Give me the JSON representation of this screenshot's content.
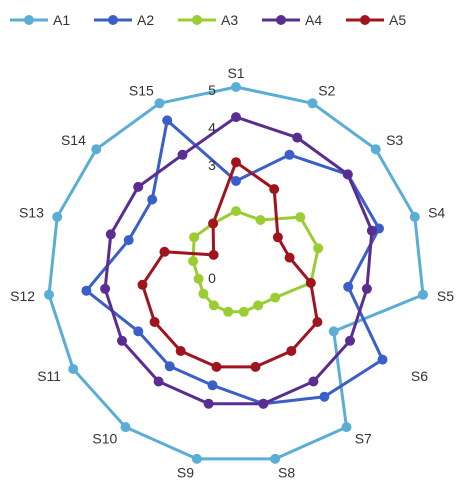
{
  "chart_data": {
    "type": "radar",
    "categories": [
      "S1",
      "S2",
      "S3",
      "S4",
      "S5",
      "S6",
      "S7",
      "S8",
      "S9",
      "S10",
      "S11",
      "S12",
      "S13",
      "S14",
      "S15"
    ],
    "rlim": [
      0,
      5
    ],
    "tick_labels": [
      "0",
      "3",
      "4",
      "5"
    ],
    "tick_values": [
      0,
      3,
      4,
      5
    ],
    "legend_position": "top",
    "series": [
      {
        "name": "A1",
        "color": "#5aaed6",
        "values": [
          5,
          5,
          5,
          5,
          5,
          3,
          5,
          5,
          5,
          5,
          5,
          5,
          5,
          5,
          5
        ]
      },
      {
        "name": "A2",
        "color": "#3a5fc8",
        "values": [
          2.5,
          3.5,
          4,
          4,
          3,
          4.5,
          4,
          3.5,
          3,
          3,
          3,
          4,
          3,
          3,
          4.5
        ]
      },
      {
        "name": "A3",
        "color": "#9acd32",
        "values": [
          1.7,
          1.6,
          2.3,
          2.3,
          2,
          1.2,
          1,
          1,
          1,
          1,
          1,
          1,
          1.2,
          1.5,
          1.5
        ]
      },
      {
        "name": "A4",
        "color": "#5a2d91",
        "values": [
          4.2,
          4,
          4,
          3.8,
          3.5,
          3.5,
          3.5,
          3.5,
          3.5,
          3.5,
          3.5,
          3.5,
          3.5,
          3.5,
          3.5
        ]
      },
      {
        "name": "A5",
        "color": "#a0141e",
        "values": [
          3,
          2.5,
          1.5,
          1.5,
          2,
          2.5,
          2.5,
          2.5,
          2.5,
          2.5,
          2.5,
          2.5,
          2,
          0.8,
          1.5
        ]
      }
    ]
  }
}
